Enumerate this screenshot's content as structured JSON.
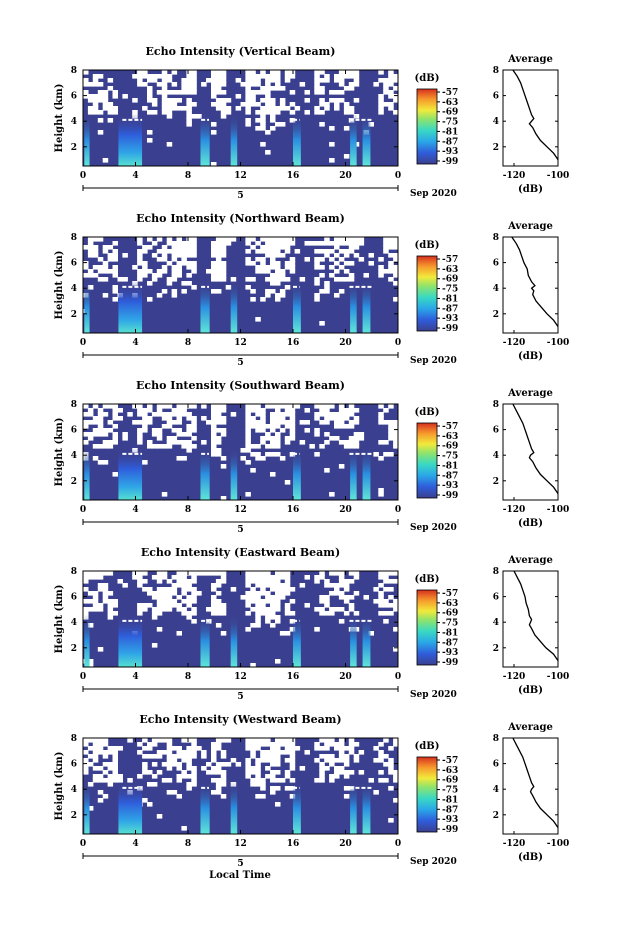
{
  "figure": {
    "x_axis_title": "Local Time",
    "date_label": "Sep 2020",
    "day_label": "5",
    "height_axis_label": "Height (km)",
    "colorbar_unit": "(dB)",
    "average_title": "Average",
    "average_xlabel": "(dB)"
  },
  "chart_data": [
    {
      "type": "heatmap",
      "title": "Echo Intensity (Vertical Beam)",
      "xlabel": "",
      "ylabel": "Height (km)",
      "x_ticks": [
        "0",
        "4",
        "8",
        "12",
        "16",
        "20",
        "0"
      ],
      "y_ticks": [
        "2",
        "4",
        "6",
        "8"
      ],
      "xlim": [
        0,
        24
      ],
      "ylim": [
        0.5,
        8
      ],
      "colorbar": {
        "unit": "(dB)",
        "ticks": [
          "-57",
          "-63",
          "-69",
          "-75",
          "-81",
          "-87",
          "-93",
          "-99"
        ],
        "range": [
          -99,
          -57
        ]
      },
      "colors": {
        "low": "#3b3f8f",
        "high": "#d7301f"
      },
      "average": {
        "title": "Average",
        "xlabel": "(dB)",
        "x_ticks": [
          "-120",
          "-100"
        ],
        "xlim": [
          -125,
          -100
        ],
        "y_ticks": [
          "2",
          "4",
          "6",
          "8"
        ],
        "ylim": [
          0.5,
          8
        ],
        "profile": {
          "height": [
            8,
            7.5,
            7,
            6.5,
            6,
            5.5,
            5,
            4.5,
            4.2,
            4,
            3.8,
            3.5,
            3,
            2.5,
            2,
            1.5,
            1
          ],
          "db": [
            -120.5,
            -118.5,
            -117,
            -116,
            -115,
            -114,
            -113,
            -112,
            -111,
            -112,
            -113,
            -111.5,
            -110,
            -108,
            -105,
            -102,
            -100
          ]
        }
      }
    },
    {
      "type": "heatmap",
      "title": "Echo Intensity (Northward Beam)",
      "xlabel": "",
      "ylabel": "Height (km)",
      "x_ticks": [
        "0",
        "4",
        "8",
        "12",
        "16",
        "20",
        "0"
      ],
      "y_ticks": [
        "2",
        "4",
        "6",
        "8"
      ],
      "xlim": [
        0,
        24
      ],
      "ylim": [
        0.5,
        8
      ],
      "colorbar": {
        "unit": "(dB)",
        "ticks": [
          "-57",
          "-63",
          "-69",
          "-75",
          "-81",
          "-87",
          "-93",
          "-99"
        ],
        "range": [
          -99,
          -57
        ]
      },
      "colors": {
        "low": "#3b3f8f",
        "high": "#d7301f"
      },
      "average": {
        "title": "Average",
        "xlabel": "(dB)",
        "x_ticks": [
          "-120",
          "-100"
        ],
        "xlim": [
          -125,
          -100
        ],
        "y_ticks": [
          "2",
          "4",
          "6",
          "8"
        ],
        "ylim": [
          0.5,
          8
        ],
        "profile": {
          "height": [
            8,
            7.5,
            7,
            6.5,
            6,
            5.5,
            5,
            4.5,
            4.2,
            4,
            3.8,
            3.5,
            3,
            2.5,
            2,
            1.5,
            1
          ],
          "db": [
            -121,
            -119,
            -117.5,
            -116.5,
            -115.5,
            -114,
            -113.5,
            -112,
            -110.5,
            -112,
            -111,
            -111.5,
            -110,
            -107.5,
            -105,
            -102,
            -100
          ]
        }
      }
    },
    {
      "type": "heatmap",
      "title": "Echo Intensity (Southward Beam)",
      "xlabel": "",
      "ylabel": "Height (km)",
      "x_ticks": [
        "0",
        "4",
        "8",
        "12",
        "16",
        "20",
        "0"
      ],
      "y_ticks": [
        "2",
        "4",
        "6",
        "8"
      ],
      "xlim": [
        0,
        24
      ],
      "ylim": [
        0.5,
        8
      ],
      "colorbar": {
        "unit": "(dB)",
        "ticks": [
          "-57",
          "-63",
          "-69",
          "-75",
          "-81",
          "-87",
          "-93",
          "-99"
        ],
        "range": [
          -99,
          -57
        ]
      },
      "colors": {
        "low": "#3b3f8f",
        "high": "#d7301f"
      },
      "average": {
        "title": "Average",
        "xlabel": "(dB)",
        "x_ticks": [
          "-120",
          "-100"
        ],
        "xlim": [
          -125,
          -100
        ],
        "y_ticks": [
          "2",
          "4",
          "6",
          "8"
        ],
        "ylim": [
          0.5,
          8
        ],
        "profile": {
          "height": [
            8,
            7.5,
            7,
            6.5,
            6,
            5.5,
            5,
            4.5,
            4.2,
            4,
            3.8,
            3.5,
            3,
            2.5,
            2,
            1.5,
            1
          ],
          "db": [
            -120.5,
            -119,
            -117.5,
            -116,
            -115,
            -114,
            -113,
            -112,
            -111,
            -112.5,
            -113,
            -111.5,
            -110,
            -108,
            -105,
            -102,
            -100
          ]
        }
      }
    },
    {
      "type": "heatmap",
      "title": "Echo Intensity (Eastward Beam)",
      "xlabel": "",
      "ylabel": "Height (km)",
      "x_ticks": [
        "0",
        "4",
        "8",
        "12",
        "16",
        "20",
        "0"
      ],
      "y_ticks": [
        "2",
        "4",
        "6",
        "8"
      ],
      "xlim": [
        0,
        24
      ],
      "ylim": [
        0.5,
        8
      ],
      "colorbar": {
        "unit": "(dB)",
        "ticks": [
          "-57",
          "-63",
          "-69",
          "-75",
          "-81",
          "-87",
          "-93",
          "-99"
        ],
        "range": [
          -99,
          -57
        ]
      },
      "colors": {
        "low": "#3b3f8f",
        "high": "#d7301f"
      },
      "average": {
        "title": "Average",
        "xlabel": "(dB)",
        "x_ticks": [
          "-120",
          "-100"
        ],
        "xlim": [
          -125,
          -100
        ],
        "y_ticks": [
          "2",
          "4",
          "6",
          "8"
        ],
        "ylim": [
          0.5,
          8
        ],
        "profile": {
          "height": [
            8,
            7.5,
            7,
            6.5,
            6,
            5.5,
            5,
            4.5,
            4.2,
            4,
            3.8,
            3.5,
            3,
            2.5,
            2,
            1.5,
            1
          ],
          "db": [
            -120,
            -118.5,
            -117,
            -116,
            -115,
            -114.5,
            -113.5,
            -113,
            -112,
            -112.5,
            -113,
            -112,
            -110.5,
            -108,
            -105.5,
            -102,
            -100
          ]
        }
      }
    },
    {
      "type": "heatmap",
      "title": "Echo Intensity (Westward Beam)",
      "xlabel": "Local Time",
      "ylabel": "Height (km)",
      "x_ticks": [
        "0",
        "4",
        "8",
        "12",
        "16",
        "20",
        "0"
      ],
      "y_ticks": [
        "2",
        "4",
        "6",
        "8"
      ],
      "xlim": [
        0,
        24
      ],
      "ylim": [
        0.5,
        8
      ],
      "colorbar": {
        "unit": "(dB)",
        "ticks": [
          "-57",
          "-63",
          "-69",
          "-75",
          "-81",
          "-87",
          "-93",
          "-99"
        ],
        "range": [
          -99,
          -57
        ]
      },
      "colors": {
        "low": "#3b3f8f",
        "high": "#d7301f"
      },
      "average": {
        "title": "Average",
        "xlabel": "(dB)",
        "x_ticks": [
          "-120",
          "-100"
        ],
        "xlim": [
          -125,
          -100
        ],
        "y_ticks": [
          "2",
          "4",
          "6",
          "8"
        ],
        "ylim": [
          0.5,
          8
        ],
        "profile": {
          "height": [
            8,
            7.5,
            7,
            6.5,
            6,
            5.5,
            5,
            4.5,
            4.2,
            4,
            3.8,
            3.5,
            3,
            2.5,
            2,
            1.5,
            1
          ],
          "db": [
            -120.5,
            -119,
            -117.5,
            -116,
            -115,
            -114,
            -113,
            -112,
            -111,
            -112,
            -112.5,
            -111.5,
            -110,
            -108,
            -105,
            -102,
            -100
          ]
        }
      }
    }
  ]
}
